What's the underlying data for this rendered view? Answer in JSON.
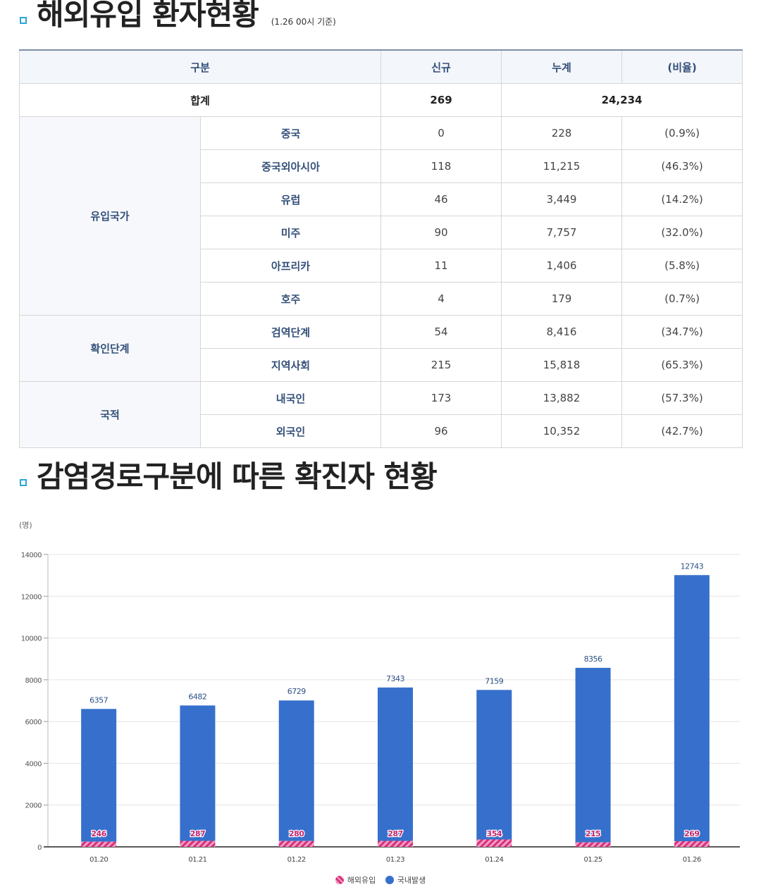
{
  "section1": {
    "title": "해외유입 환자현황",
    "note": "(1.26 00시 기준)"
  },
  "table": {
    "headers": [
      "구분",
      "신규",
      "누계",
      "(비율)"
    ],
    "total": {
      "label": "합계",
      "new": "269",
      "cum": "24,234"
    },
    "groups": [
      {
        "name": "유입국가",
        "rows": [
          {
            "label": "중국",
            "new": "0",
            "cum": "228",
            "ratio": "(0.9%)"
          },
          {
            "label": "중국외아시아",
            "new": "118",
            "cum": "11,215",
            "ratio": "(46.3%)"
          },
          {
            "label": "유럽",
            "new": "46",
            "cum": "3,449",
            "ratio": "(14.2%)"
          },
          {
            "label": "미주",
            "new": "90",
            "cum": "7,757",
            "ratio": "(32.0%)"
          },
          {
            "label": "아프리카",
            "new": "11",
            "cum": "1,406",
            "ratio": "(5.8%)"
          },
          {
            "label": "호주",
            "new": "4",
            "cum": "179",
            "ratio": "(0.7%)"
          }
        ]
      },
      {
        "name": "확인단계",
        "rows": [
          {
            "label": "검역단계",
            "new": "54",
            "cum": "8,416",
            "ratio": "(34.7%)"
          },
          {
            "label": "지역사회",
            "new": "215",
            "cum": "15,818",
            "ratio": "(65.3%)"
          }
        ]
      },
      {
        "name": "국적",
        "rows": [
          {
            "label": "내국인",
            "new": "173",
            "cum": "13,882",
            "ratio": "(57.3%)"
          },
          {
            "label": "외국인",
            "new": "96",
            "cum": "10,352",
            "ratio": "(42.7%)"
          }
        ]
      }
    ]
  },
  "section2": {
    "title": "감염경로구분에 따른 확진자 현황"
  },
  "chart_data": {
    "type": "bar",
    "stacked": true,
    "unit_label": "(명)",
    "categories": [
      "01.20",
      "01.21",
      "01.22",
      "01.23",
      "01.24",
      "01.25",
      "01.26"
    ],
    "series": [
      {
        "name": "해외유입",
        "values": [
          246,
          287,
          280,
          287,
          354,
          215,
          269
        ],
        "color": "#d6307a"
      },
      {
        "name": "국내발생",
        "values": [
          6357,
          6482,
          6729,
          7343,
          7159,
          8356,
          12743
        ],
        "color": "#3670cc"
      }
    ],
    "ylim": [
      0,
      14000
    ],
    "yticks": [
      0,
      2000,
      4000,
      6000,
      8000,
      10000,
      12000,
      14000
    ],
    "grid": true,
    "legend": "bottom"
  }
}
